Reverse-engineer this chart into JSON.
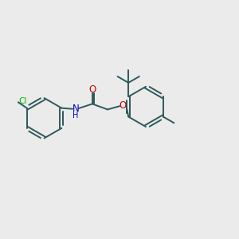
{
  "bg_color": "#ebebeb",
  "bond_color": "#2d5a5a",
  "N_color": "#0000cc",
  "O_color": "#cc0000",
  "Cl_color": "#00bb00",
  "line_width": 1.4,
  "dbo": 0.06,
  "ring_r": 0.72,
  "figsize": [
    3.0,
    3.0
  ],
  "dpi": 100,
  "xlim": [
    0.0,
    8.5
  ],
  "ylim": [
    1.5,
    7.5
  ]
}
